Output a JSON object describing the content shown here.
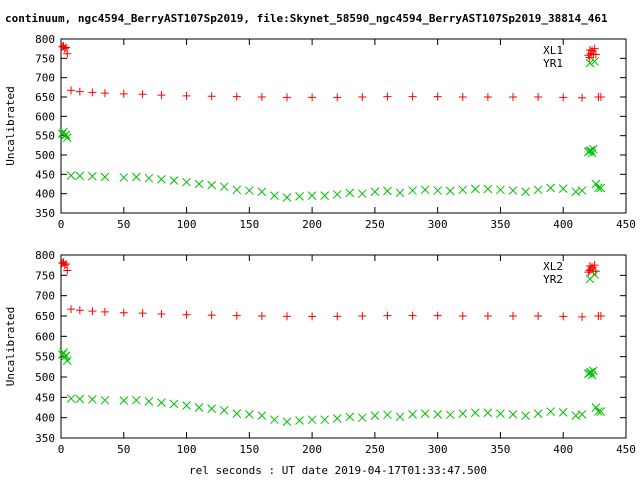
{
  "chart_data": {
    "title": "continuum, ngc4594_BerryAST107Sp2019, file:Skynet_58590_ngc4594_BerryAST107Sp2019_38814_461",
    "xlabel": "rel seconds : UT date 2019-04-17T01:33:47.500",
    "panels": [
      {
        "type": "scatter",
        "ylabel": "Uncalibrated",
        "xlim": [
          0,
          450
        ],
        "ylim": [
          350,
          800
        ],
        "xticks": [
          0,
          50,
          100,
          150,
          200,
          250,
          300,
          350,
          400,
          450
        ],
        "yticks": [
          350,
          400,
          450,
          500,
          550,
          600,
          650,
          700,
          750,
          800
        ],
        "legend_position": "top-right",
        "series": [
          {
            "name": "XL1",
            "marker": "plus",
            "color": "#ff0000",
            "x": [
              1,
              2,
              3,
              4,
              5,
              8,
              15,
              25,
              35,
              50,
              65,
              80,
              100,
              120,
              140,
              160,
              180,
              200,
              220,
              240,
              260,
              280,
              300,
              320,
              340,
              360,
              380,
              400,
              415,
              420,
              421,
              422,
              423,
              424,
              425,
              426,
              428,
              430
            ],
            "y": [
              780,
              782,
              775,
              778,
              762,
              667,
              664,
              662,
              660,
              658,
              657,
              655,
              653,
              652,
              651,
              650,
              649,
              649,
              649,
              650,
              651,
              651,
              651,
              650,
              650,
              650,
              650,
              649,
              648,
              758,
              752,
              762,
              770,
              760,
              775,
              760,
              650,
              650
            ]
          },
          {
            "name": "YR1",
            "marker": "cross",
            "color": "#00c000",
            "x": [
              1,
              2,
              3,
              4,
              5,
              8,
              15,
              25,
              35,
              50,
              60,
              70,
              80,
              90,
              100,
              110,
              120,
              130,
              140,
              150,
              160,
              170,
              180,
              190,
              200,
              210,
              220,
              230,
              240,
              250,
              260,
              270,
              280,
              290,
              300,
              310,
              320,
              330,
              340,
              350,
              360,
              370,
              380,
              390,
              400,
              410,
              415,
              420,
              421,
              422,
              423,
              424,
              425,
              426,
              428,
              430
            ],
            "y": [
              555,
              560,
              550,
              552,
              545,
              447,
              446,
              445,
              443,
              442,
              443,
              440,
              437,
              434,
              430,
              425,
              422,
              418,
              410,
              408,
              405,
              395,
              390,
              393,
              395,
              395,
              398,
              402,
              400,
              405,
              407,
              402,
              408,
              410,
              408,
              407,
              410,
              412,
              412,
              410,
              408,
              405,
              410,
              415,
              413,
              405,
              408,
              508,
              510,
              512,
              505,
              515,
              742,
              425,
              415,
              415
            ]
          }
        ]
      },
      {
        "type": "scatter",
        "ylabel": "Uncalibrated",
        "xlim": [
          0,
          450
        ],
        "ylim": [
          350,
          800
        ],
        "xticks": [
          0,
          50,
          100,
          150,
          200,
          250,
          300,
          350,
          400,
          450
        ],
        "yticks": [
          350,
          400,
          450,
          500,
          550,
          600,
          650,
          700,
          750,
          800
        ],
        "legend_position": "top-right",
        "series": [
          {
            "name": "XL2",
            "marker": "plus",
            "color": "#ff0000",
            "x": [
              1,
              2,
              3,
              4,
              5,
              8,
              15,
              25,
              35,
              50,
              65,
              80,
              100,
              120,
              140,
              160,
              180,
              200,
              220,
              240,
              260,
              280,
              300,
              320,
              340,
              360,
              380,
              400,
              415,
              420,
              421,
              422,
              423,
              424,
              425,
              426,
              428,
              430
            ],
            "y": [
              780,
              782,
              775,
              778,
              762,
              667,
              664,
              662,
              660,
              658,
              657,
              655,
              653,
              652,
              651,
              650,
              649,
              649,
              649,
              650,
              651,
              651,
              651,
              650,
              650,
              650,
              650,
              649,
              648,
              758,
              762,
              765,
              770,
              760,
              775,
              760,
              650,
              650
            ]
          },
          {
            "name": "YR2",
            "marker": "cross",
            "color": "#00c000",
            "x": [
              1,
              2,
              3,
              4,
              5,
              8,
              15,
              25,
              35,
              50,
              60,
              70,
              80,
              90,
              100,
              110,
              120,
              130,
              140,
              150,
              160,
              170,
              180,
              190,
              200,
              210,
              220,
              230,
              240,
              250,
              260,
              270,
              280,
              290,
              300,
              310,
              320,
              330,
              340,
              350,
              360,
              370,
              380,
              390,
              400,
              410,
              415,
              420,
              421,
              422,
              423,
              424,
              425,
              426,
              428,
              430
            ],
            "y": [
              555,
              560,
              550,
              552,
              540,
              447,
              446,
              445,
              443,
              442,
              443,
              440,
              437,
              434,
              430,
              425,
              422,
              418,
              410,
              408,
              405,
              395,
              390,
              393,
              395,
              395,
              398,
              402,
              400,
              405,
              407,
              402,
              408,
              410,
              408,
              407,
              410,
              412,
              412,
              410,
              408,
              405,
              410,
              415,
              413,
              405,
              408,
              508,
              510,
              512,
              505,
              515,
              752,
              425,
              415,
              415
            ]
          }
        ]
      }
    ]
  }
}
